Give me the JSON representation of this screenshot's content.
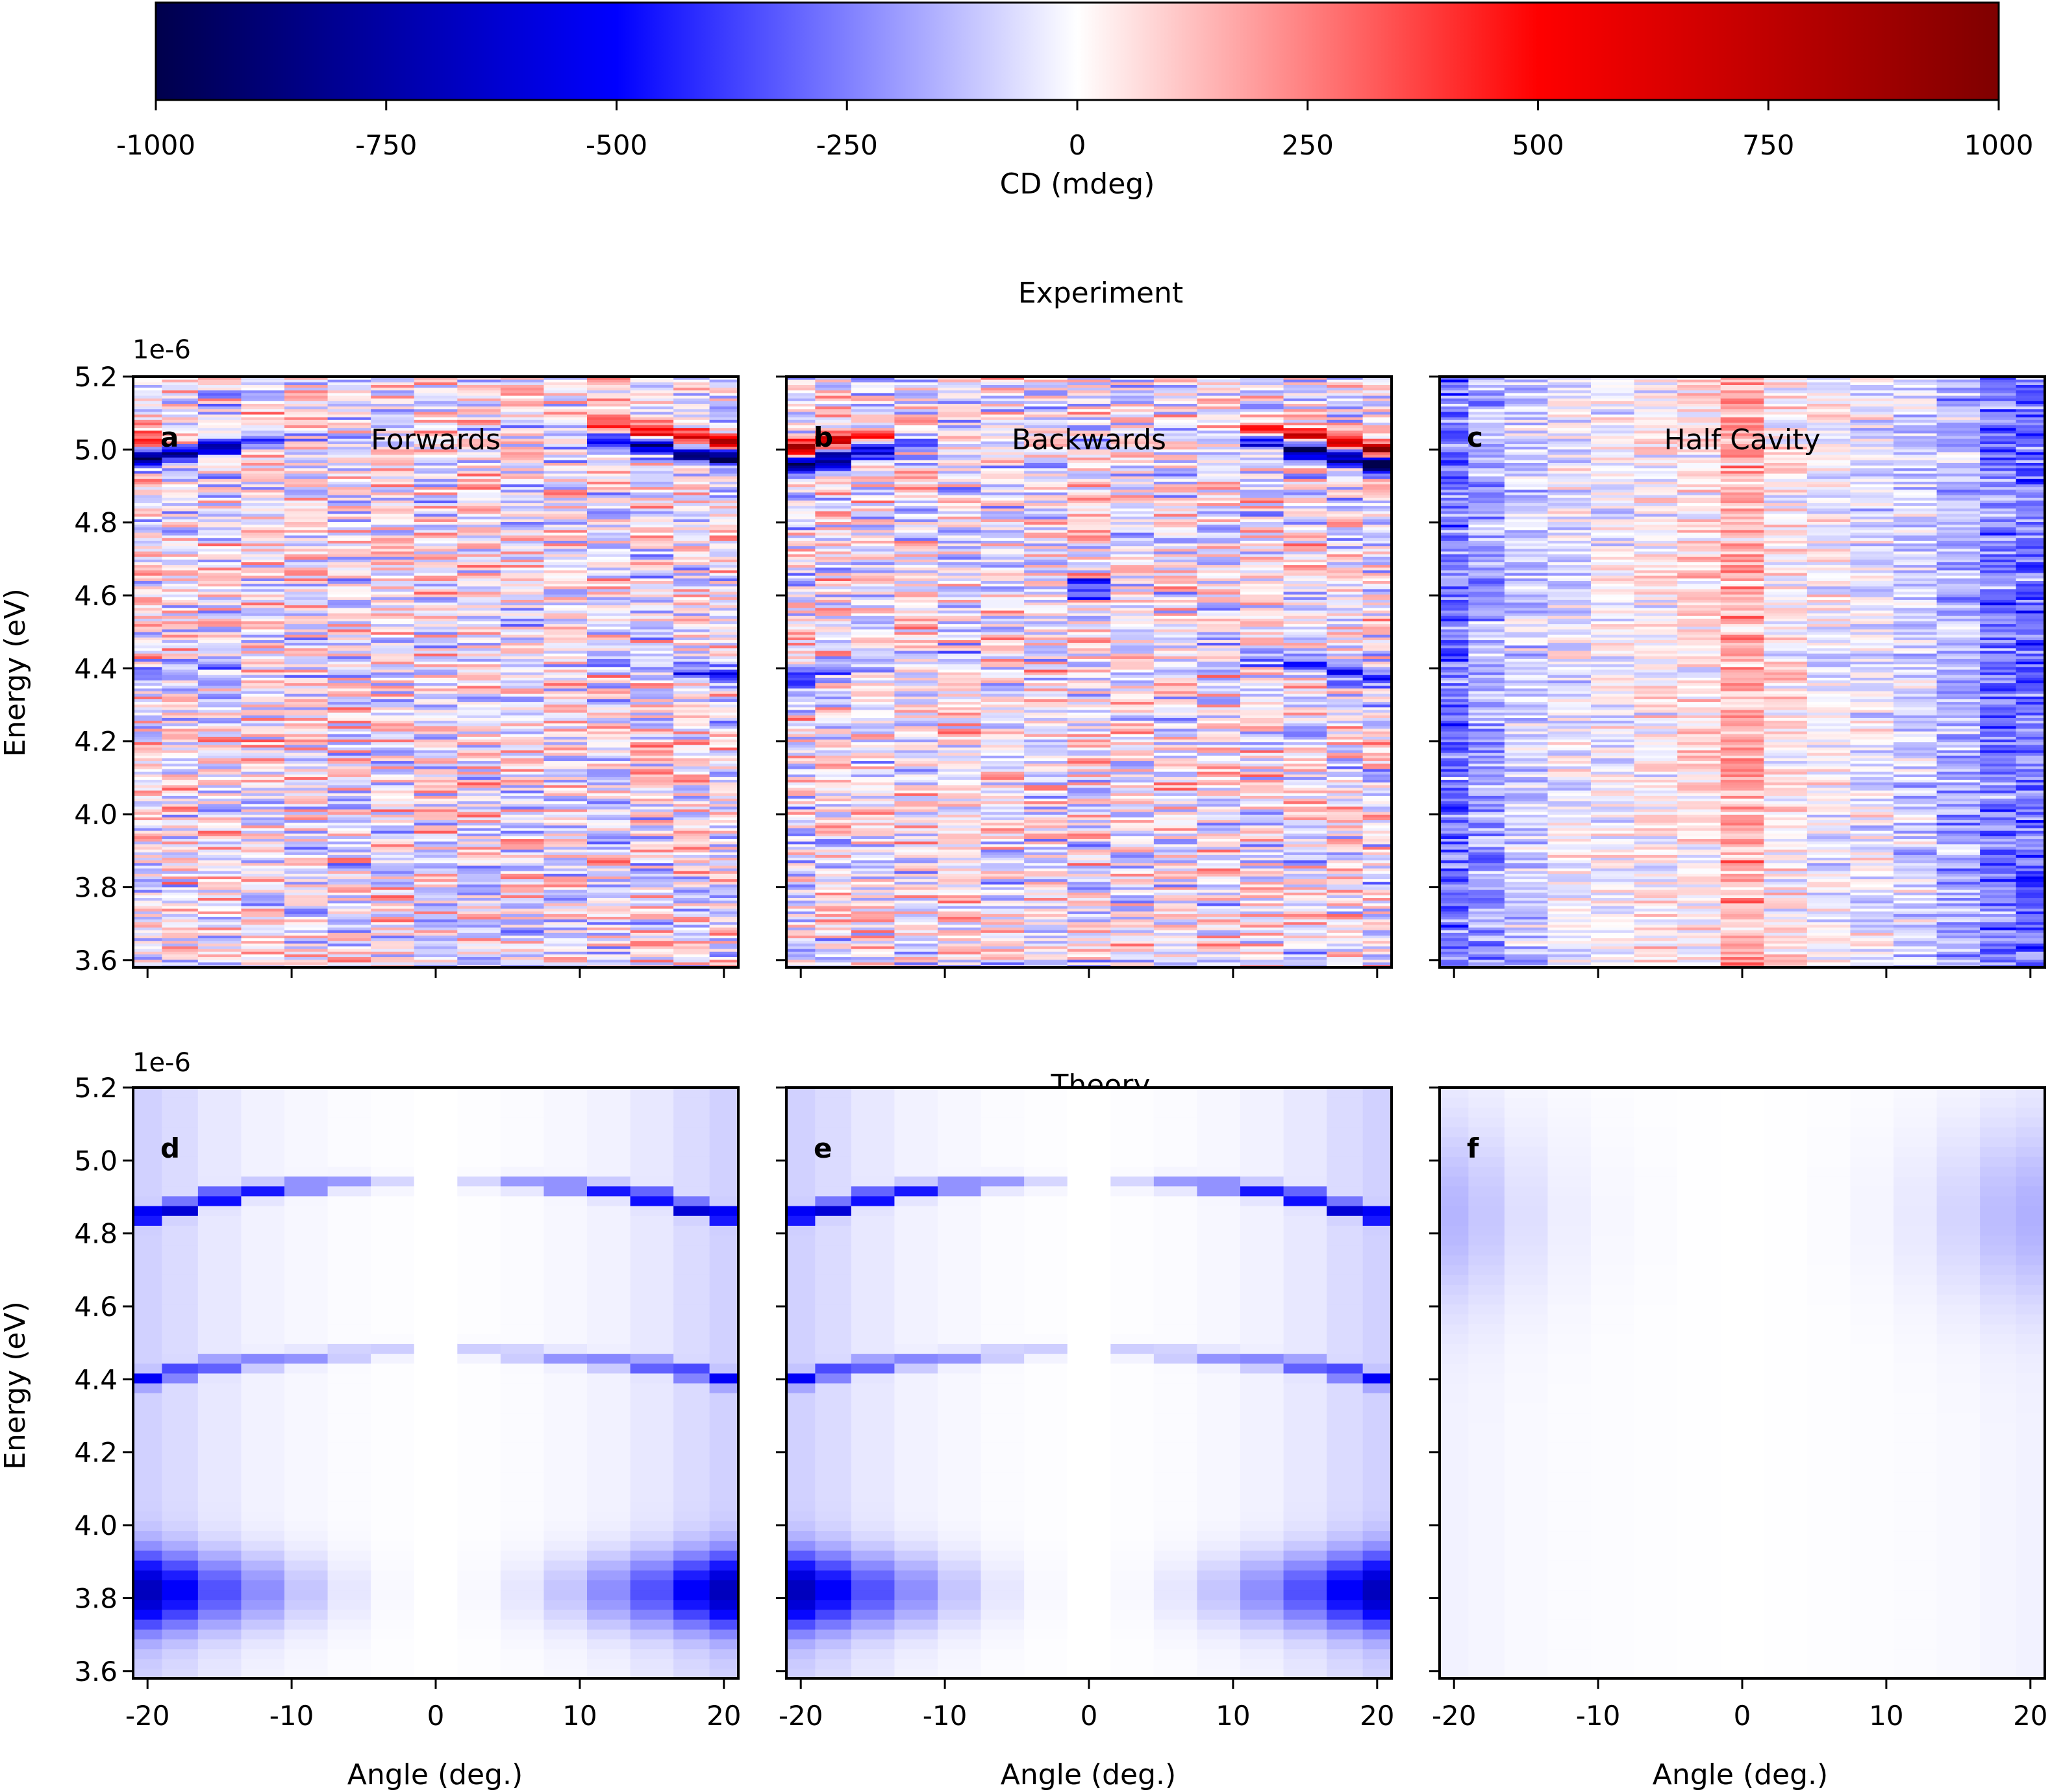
{
  "colorbar": {
    "label": "CD (mdeg)",
    "min": -1000,
    "max": 1000,
    "tick_values": [
      -1000,
      -750,
      -500,
      -250,
      0,
      250,
      500,
      750,
      1000
    ],
    "tick_labels": [
      "-1000",
      "-750",
      "-500",
      "-250",
      "0",
      "250",
      "500",
      "750",
      "1000"
    ],
    "colormap": "seismic",
    "colors": [
      "#00004c",
      "#0000ff",
      "#ffffff",
      "#ff0000",
      "#7f0000"
    ]
  },
  "sections": {
    "experiment_title": "Experiment",
    "theory_title": "Theory"
  },
  "axes": {
    "y_label": "Energy (eV)",
    "x_label": "Angle (deg.)",
    "y_offset_text": "1e-6",
    "y_tick_values": [
      3.6,
      3.8,
      4.0,
      4.2,
      4.4,
      4.6,
      4.8,
      5.0,
      5.2
    ],
    "y_tick_labels": [
      "3.6",
      "3.8",
      "4.0",
      "4.2",
      "4.4",
      "4.6",
      "4.8",
      "5.0",
      "5.2"
    ],
    "x_tick_values": [
      -20,
      -10,
      0,
      10,
      20
    ],
    "x_tick_labels": [
      "-20",
      "-10",
      "0",
      "10",
      "20"
    ],
    "xlim": [
      -21,
      21
    ],
    "ylim": [
      3.58,
      5.2
    ]
  },
  "panels": {
    "a": {
      "letter": "a",
      "title": "Forwards"
    },
    "b": {
      "letter": "b",
      "title": "Backwards"
    },
    "c": {
      "letter": "c",
      "title": "Half Cavity"
    },
    "d": {
      "letter": "d",
      "title": ""
    },
    "e": {
      "letter": "e",
      "title": ""
    },
    "f": {
      "letter": "f",
      "title": ""
    }
  },
  "chart_data": [
    {
      "panel": "a",
      "type": "heatmap",
      "title": "Forwards",
      "angles": [
        -20,
        -18,
        -15,
        -12,
        -9,
        -6,
        -3,
        0,
        3,
        6,
        9,
        12,
        15,
        18,
        20
      ],
      "features": [
        {
          "kind": "band",
          "energy_by_angle": [
            4.98,
            4.99,
            5.01,
            5.03,
            5.04,
            5.05,
            5.05,
            5.05,
            5.05,
            5.05,
            5.04,
            5.03,
            5.01,
            4.99,
            4.98
          ],
          "cd_by_angle": [
            -1000,
            -800,
            -600,
            -300,
            -100,
            0,
            0,
            0,
            0,
            0,
            -100,
            -500,
            -800,
            -950,
            -1000
          ]
        },
        {
          "kind": "band",
          "energy_by_angle": [
            5.02,
            5.03,
            5.05,
            5.07,
            5.08,
            5.09,
            5.09,
            5.09,
            5.09,
            5.09,
            5.08,
            5.07,
            5.05,
            5.03,
            5.02
          ],
          "cd_by_angle": [
            500,
            200,
            100,
            50,
            0,
            0,
            0,
            0,
            0,
            0,
            100,
            300,
            600,
            700,
            800
          ]
        },
        {
          "kind": "band",
          "energy_by_angle": [
            4.38,
            4.39,
            4.41,
            4.42,
            4.43,
            4.44,
            4.44,
            4.44,
            4.44,
            4.44,
            4.43,
            4.42,
            4.41,
            4.39,
            4.38
          ],
          "cd_by_angle": [
            -350,
            -250,
            -150,
            -100,
            -50,
            0,
            0,
            0,
            0,
            0,
            -50,
            -100,
            -200,
            -400,
            -450
          ]
        }
      ],
      "noise_amplitude": 350
    },
    {
      "panel": "b",
      "type": "heatmap",
      "title": "Backwards",
      "angles": [
        -20,
        -18,
        -15,
        -12,
        -9,
        -6,
        -3,
        0,
        3,
        6,
        9,
        12,
        15,
        18,
        20
      ],
      "features": [
        {
          "kind": "band",
          "energy_by_angle": [
            4.96,
            4.98,
            5.0,
            5.02,
            5.03,
            5.04,
            5.04,
            5.04,
            5.04,
            5.04,
            5.03,
            5.02,
            5.0,
            4.98,
            4.96
          ],
          "cd_by_angle": [
            -1000,
            -900,
            -700,
            -300,
            -100,
            0,
            0,
            0,
            0,
            0,
            -100,
            -500,
            -850,
            -950,
            -1000
          ]
        },
        {
          "kind": "band",
          "energy_by_angle": [
            5.0,
            5.02,
            5.04,
            5.06,
            5.07,
            5.08,
            5.08,
            5.08,
            5.08,
            5.08,
            5.07,
            5.06,
            5.04,
            5.02,
            5.0
          ],
          "cd_by_angle": [
            850,
            600,
            300,
            100,
            0,
            0,
            0,
            0,
            0,
            0,
            100,
            400,
            700,
            800,
            850
          ]
        },
        {
          "kind": "band",
          "energy_by_angle": [
            4.37,
            4.39,
            4.41,
            4.42,
            4.43,
            4.44,
            4.44,
            4.44,
            4.44,
            4.44,
            4.43,
            4.42,
            4.41,
            4.39,
            4.37
          ],
          "cd_by_angle": [
            -400,
            -300,
            -200,
            -100,
            -50,
            0,
            0,
            0,
            0,
            0,
            -50,
            -150,
            -300,
            -450,
            -450
          ]
        },
        {
          "kind": "spot",
          "energy": 4.62,
          "angle": 0,
          "cd": -400
        }
      ],
      "noise_amplitude": 350
    },
    {
      "panel": "c",
      "type": "heatmap",
      "title": "Half Cavity",
      "angles": [
        -20,
        -18,
        -15,
        -12,
        -9,
        -6,
        -3,
        0,
        3,
        6,
        9,
        12,
        15,
        18,
        20
      ],
      "column_offset_cd": [
        -280,
        -180,
        -100,
        -40,
        0,
        20,
        40,
        160,
        30,
        -20,
        -40,
        -80,
        -150,
        -260,
        -300
      ],
      "noise_amplitude": 200
    },
    {
      "panel": "d",
      "type": "heatmap",
      "title": "",
      "angles": [
        -20,
        -18,
        -15,
        -12,
        -9,
        -6,
        -3,
        0,
        3,
        6,
        9,
        12,
        15,
        18,
        20
      ],
      "features": [
        {
          "kind": "band",
          "energy_by_angle": [
            4.85,
            4.87,
            4.9,
            4.92,
            4.93,
            4.94,
            4.94,
            null,
            4.94,
            4.94,
            4.93,
            4.92,
            4.9,
            4.87,
            4.85
          ],
          "cd_by_angle": [
            -700,
            -650,
            -600,
            -450,
            -350,
            -200,
            -80,
            0,
            -80,
            -200,
            -350,
            -450,
            -600,
            -650,
            -700
          ]
        },
        {
          "kind": "band",
          "energy_by_angle": [
            4.4,
            4.42,
            4.44,
            4.45,
            4.46,
            4.47,
            4.48,
            null,
            4.48,
            4.47,
            4.46,
            4.45,
            4.44,
            4.42,
            4.4
          ],
          "cd_by_angle": [
            -450,
            -400,
            -350,
            -250,
            -200,
            -150,
            -100,
            0,
            -100,
            -150,
            -200,
            -250,
            -350,
            -400,
            -450
          ]
        },
        {
          "kind": "broad",
          "center_energy": 3.82,
          "width": 0.1,
          "cd_by_angle": [
            -600,
            -450,
            -300,
            -200,
            -100,
            -40,
            -10,
            0,
            -10,
            -40,
            -100,
            -200,
            -300,
            -450,
            -600
          ]
        },
        {
          "kind": "background",
          "cd_by_angle": [
            -90,
            -70,
            -45,
            -25,
            -15,
            -8,
            -3,
            0,
            -3,
            -8,
            -15,
            -25,
            -45,
            -70,
            -90
          ]
        }
      ]
    },
    {
      "panel": "e",
      "type": "heatmap",
      "title": "",
      "angles": [
        -20,
        -18,
        -15,
        -12,
        -9,
        -6,
        -3,
        0,
        3,
        6,
        9,
        12,
        15,
        18,
        20
      ],
      "features": [
        {
          "kind": "band",
          "energy_by_angle": [
            4.85,
            4.87,
            4.9,
            4.92,
            4.93,
            4.94,
            4.94,
            null,
            4.94,
            4.94,
            4.93,
            4.92,
            4.9,
            4.87,
            4.85
          ],
          "cd_by_angle": [
            -700,
            -650,
            -600,
            -450,
            -350,
            -200,
            -80,
            0,
            -80,
            -200,
            -350,
            -450,
            -600,
            -650,
            -700
          ]
        },
        {
          "kind": "band",
          "energy_by_angle": [
            4.4,
            4.42,
            4.44,
            4.45,
            4.46,
            4.47,
            4.48,
            null,
            4.48,
            4.47,
            4.46,
            4.45,
            4.44,
            4.42,
            4.4
          ],
          "cd_by_angle": [
            -450,
            -400,
            -350,
            -250,
            -200,
            -150,
            -100,
            0,
            -100,
            -150,
            -200,
            -250,
            -350,
            -400,
            -450
          ]
        },
        {
          "kind": "broad",
          "center_energy": 3.82,
          "width": 0.1,
          "cd_by_angle": [
            -600,
            -450,
            -300,
            -200,
            -100,
            -40,
            -10,
            0,
            -10,
            -40,
            -100,
            -200,
            -300,
            -450,
            -600
          ]
        },
        {
          "kind": "background",
          "cd_by_angle": [
            -90,
            -70,
            -45,
            -25,
            -15,
            -8,
            -3,
            0,
            -3,
            -8,
            -15,
            -25,
            -45,
            -70,
            -90
          ]
        }
      ]
    },
    {
      "panel": "f",
      "type": "heatmap",
      "title": "",
      "angles": [
        -20,
        -18,
        -15,
        -12,
        -9,
        -6,
        -3,
        0,
        3,
        6,
        9,
        12,
        15,
        18,
        20
      ],
      "features": [
        {
          "kind": "broad",
          "center_energy": 4.85,
          "width": 0.25,
          "cd_by_angle": [
            -120,
            -90,
            -50,
            -25,
            -10,
            -5,
            0,
            0,
            0,
            -5,
            -15,
            -35,
            -70,
            -110,
            -130
          ]
        },
        {
          "kind": "background",
          "cd_by_angle": [
            -25,
            -20,
            -12,
            -8,
            -5,
            -3,
            -2,
            0,
            -2,
            -3,
            -5,
            -8,
            -12,
            -20,
            -25
          ]
        }
      ]
    }
  ]
}
